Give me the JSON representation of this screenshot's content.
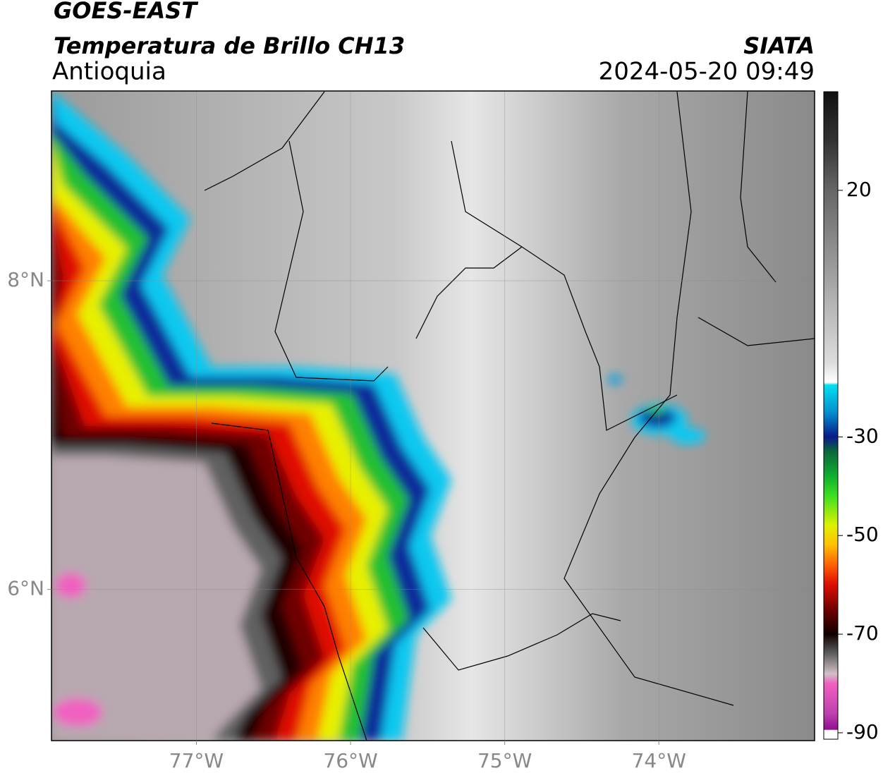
{
  "header": {
    "satellite": "GOES-EAST",
    "product": "Temperatura de Brillo CH13",
    "region": "Antioquia",
    "source": "SIATA",
    "datetime": "2024-05-20 09:49"
  },
  "map": {
    "xlim": [
      -77.94,
      -72.99
    ],
    "ylim": [
      5.02,
      9.23
    ],
    "xticks": [
      {
        "value": -77,
        "label": "77°W"
      },
      {
        "value": -76,
        "label": "76°W"
      },
      {
        "value": -75,
        "label": "75°W"
      },
      {
        "value": -74,
        "label": "74°W"
      }
    ],
    "yticks": [
      {
        "value": 6,
        "label": "6°N"
      },
      {
        "value": 8,
        "label": "8°N"
      }
    ],
    "grid": true
  },
  "colorbar": {
    "lim": [
      -91.3,
      40
    ],
    "ticks": [
      -90,
      -70,
      -50,
      -30,
      20
    ]
  }
}
